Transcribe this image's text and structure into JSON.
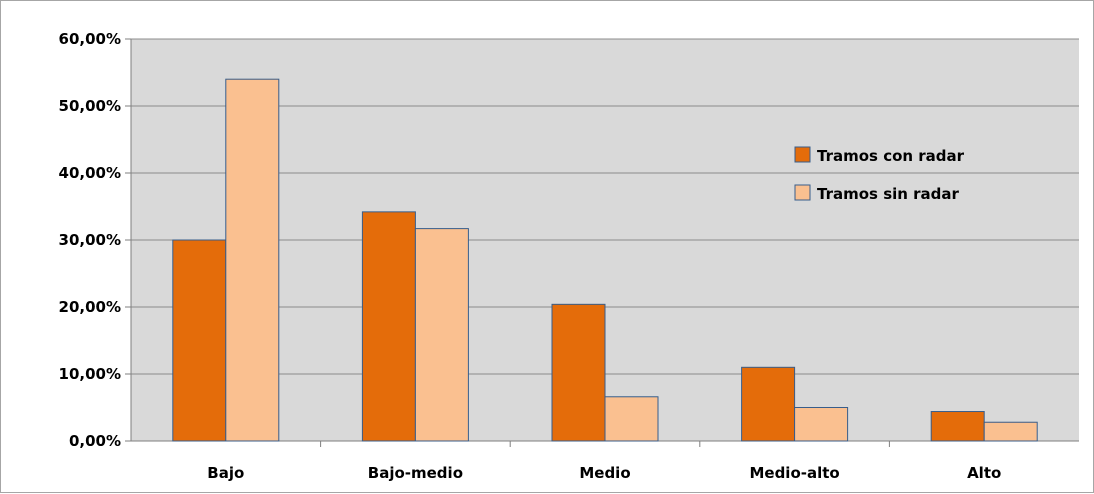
{
  "chart_data": {
    "type": "bar",
    "title": "",
    "xlabel": "",
    "ylabel": "",
    "categories": [
      "Bajo",
      "Bajo-medio",
      "Medio",
      "Medio-alto",
      "Alto"
    ],
    "series": [
      {
        "name": "Tramos con radar",
        "values": [
          30.0,
          34.2,
          20.4,
          11.0,
          4.4
        ],
        "color": "#e46c0a"
      },
      {
        "name": "Tramos sin radar",
        "values": [
          54.0,
          31.7,
          6.6,
          5.0,
          2.8
        ],
        "color": "#fac090"
      }
    ],
    "ylim": [
      0,
      60
    ],
    "yticks": [
      0,
      10,
      20,
      30,
      40,
      50,
      60
    ],
    "ytick_labels": [
      "0,00%",
      "10,00%",
      "20,00%",
      "30,00%",
      "40,00%",
      "50,00%",
      "60,00%"
    ],
    "grid": true,
    "legend_position": "right",
    "plot_background": "#d9d9d9",
    "bar_border_color": "#385d8a",
    "gridline_color": "#8c8c8c"
  }
}
